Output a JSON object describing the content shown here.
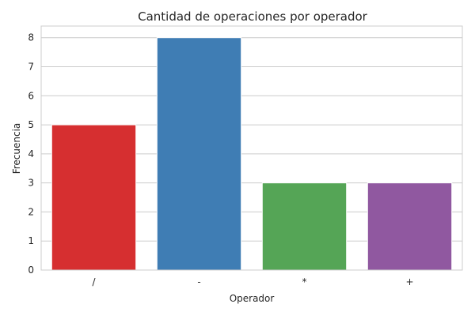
{
  "chart_data": {
    "type": "bar",
    "title": "Cantidad de operaciones por operador",
    "xlabel": "Operador",
    "ylabel": "Frecuencia",
    "categories": [
      "/",
      "-",
      "*",
      "+"
    ],
    "values": [
      5,
      8,
      3,
      3
    ],
    "colors": [
      "#d62f30",
      "#3f7db4",
      "#55a556",
      "#9058a0"
    ],
    "ylim": [
      0,
      8.4
    ],
    "yticks": [
      0,
      1,
      2,
      3,
      4,
      5,
      6,
      7,
      8
    ],
    "grid": true,
    "legend": "none"
  }
}
